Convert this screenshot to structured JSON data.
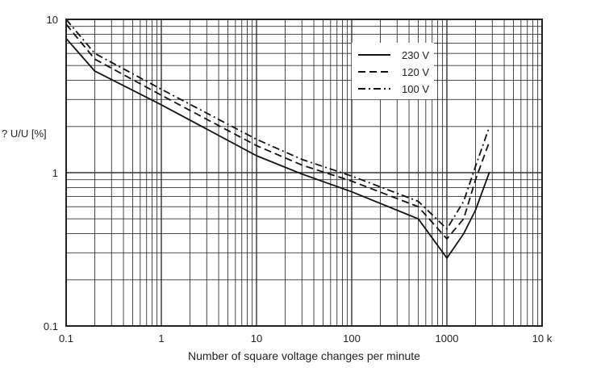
{
  "chart_data": {
    "type": "line",
    "title": "",
    "xlabel": "Number of square voltage changes per minute",
    "ylabel": "? U/U [%]",
    "xscale": "log",
    "yscale": "log",
    "xlim": [
      0.1,
      10000
    ],
    "ylim": [
      0.1,
      10
    ],
    "xticks": [
      {
        "v": 0.1,
        "label": "0.1"
      },
      {
        "v": 1,
        "label": "1"
      },
      {
        "v": 10,
        "label": "10"
      },
      {
        "v": 100,
        "label": "100"
      },
      {
        "v": 1000,
        "label": "1000"
      },
      {
        "v": 10000,
        "label": "10 k"
      }
    ],
    "yticks": [
      {
        "v": 0.1,
        "label": "0.1"
      },
      {
        "v": 1,
        "label": "1"
      },
      {
        "v": 10,
        "label": "10"
      }
    ],
    "grid": true,
    "legend_position": "top-right",
    "series": [
      {
        "name": "230 V",
        "style": "solid",
        "x": [
          0.1,
          0.2,
          1,
          10,
          30,
          100,
          500,
          1000,
          1500,
          2000,
          2800
        ],
        "y": [
          7.5,
          4.6,
          2.77,
          1.29,
          0.98,
          0.75,
          0.5,
          0.277,
          0.4,
          0.57,
          1.01
        ]
      },
      {
        "name": "120 V",
        "style": "dashed",
        "x": [
          0.1,
          0.2,
          1,
          10,
          30,
          100,
          500,
          1000,
          1500,
          2000,
          2800
        ],
        "y": [
          9.3,
          5.5,
          3.2,
          1.5,
          1.12,
          0.88,
          0.6,
          0.37,
          0.5,
          0.9,
          1.6
        ]
      },
      {
        "name": "100 V",
        "style": "dashdot",
        "x": [
          0.1,
          0.2,
          1,
          10,
          30,
          100,
          500,
          1000,
          1500,
          2000,
          2800
        ],
        "y": [
          10,
          6,
          3.5,
          1.65,
          1.22,
          0.95,
          0.65,
          0.43,
          0.65,
          1.1,
          2.0
        ]
      }
    ]
  }
}
